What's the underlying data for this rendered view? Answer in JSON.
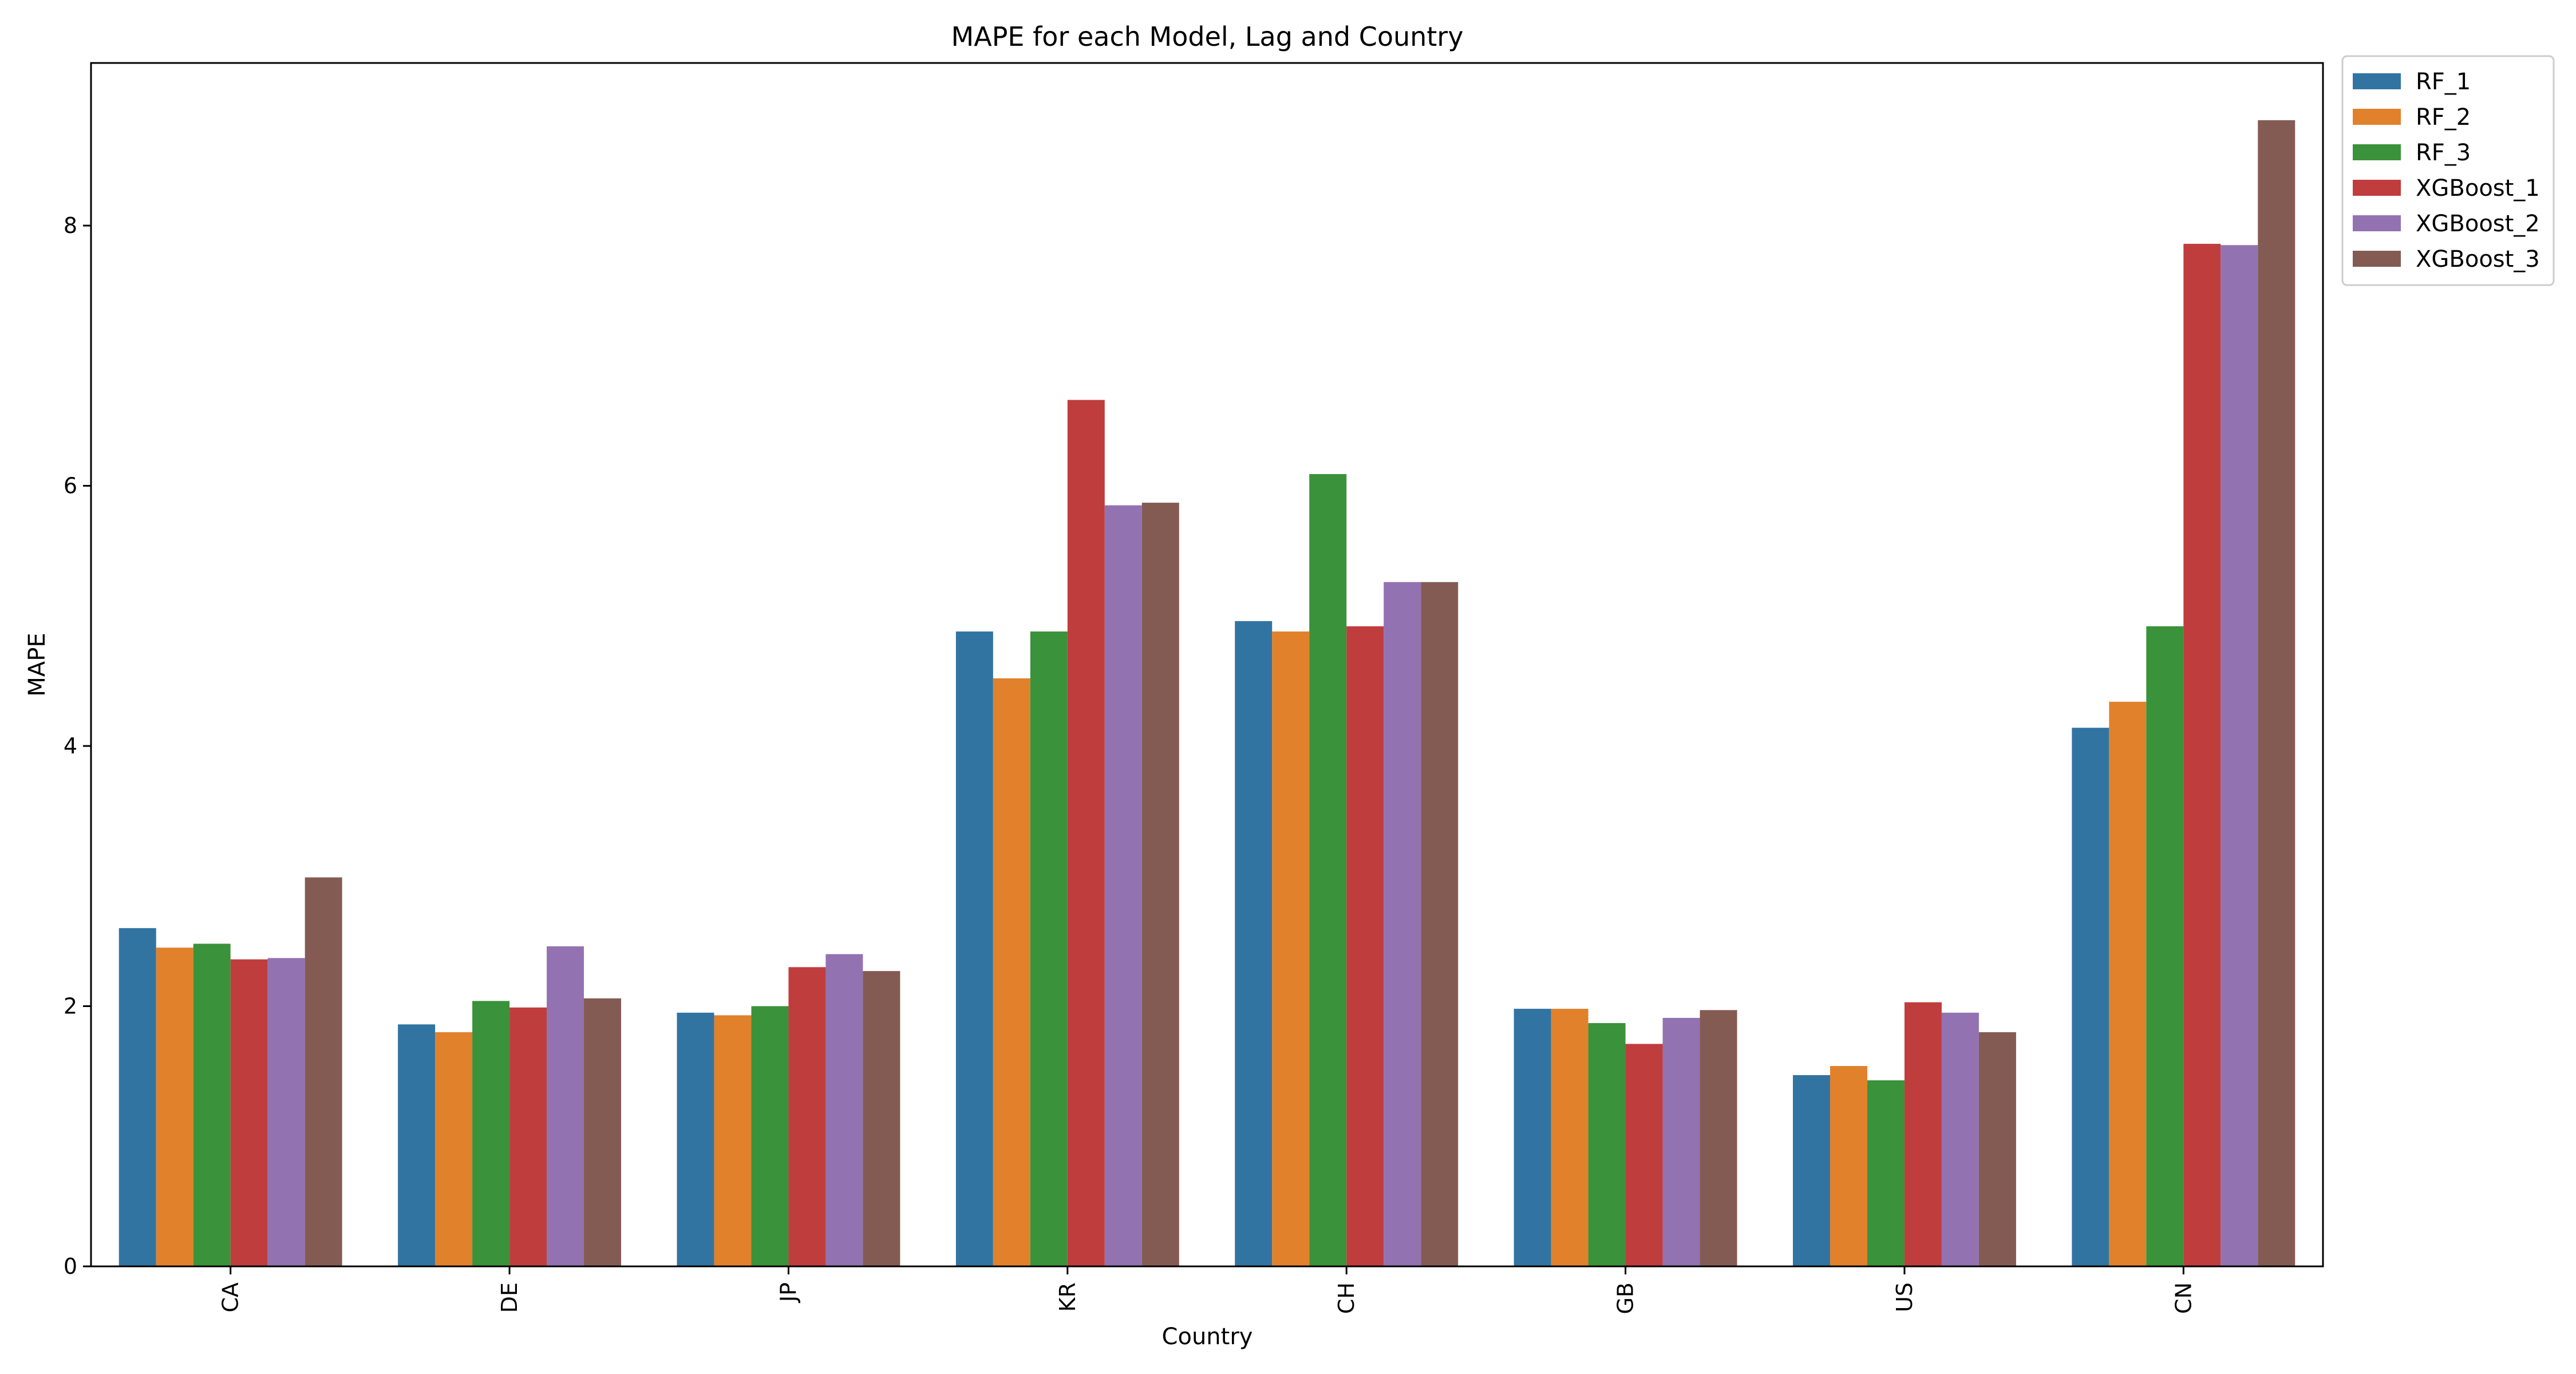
{
  "chart_data": {
    "type": "bar",
    "title": "MAPE for each Model, Lag and Country",
    "xlabel": "Country",
    "ylabel": "MAPE",
    "ylim": [
      0,
      9.25
    ],
    "yticks": [
      0,
      2,
      4,
      6,
      8
    ],
    "legend_position": "outside-top-right",
    "categories": [
      "CA",
      "DE",
      "JP",
      "KR",
      "CH",
      "GB",
      "US",
      "CN"
    ],
    "series": [
      {
        "name": "RF_1",
        "color": "#3274a1",
        "values": [
          2.6,
          1.86,
          1.95,
          4.88,
          4.96,
          1.98,
          1.47,
          4.14
        ]
      },
      {
        "name": "RF_2",
        "color": "#e1812c",
        "values": [
          2.45,
          1.8,
          1.93,
          4.52,
          4.88,
          1.98,
          1.54,
          4.34
        ]
      },
      {
        "name": "RF_3",
        "color": "#3a923a",
        "values": [
          2.48,
          2.04,
          2.0,
          4.88,
          6.09,
          1.87,
          1.43,
          4.92
        ]
      },
      {
        "name": "XGBoost_1",
        "color": "#c03d3e",
        "values": [
          2.36,
          1.99,
          2.3,
          6.66,
          4.92,
          1.71,
          2.03,
          7.86
        ]
      },
      {
        "name": "XGBoost_2",
        "color": "#9372b2",
        "values": [
          2.37,
          2.46,
          2.4,
          5.85,
          5.26,
          1.91,
          1.95,
          7.85
        ]
      },
      {
        "name": "XGBoost_3",
        "color": "#845b53",
        "values": [
          2.99,
          2.06,
          2.27,
          5.87,
          5.26,
          1.97,
          1.8,
          8.81
        ]
      }
    ]
  }
}
